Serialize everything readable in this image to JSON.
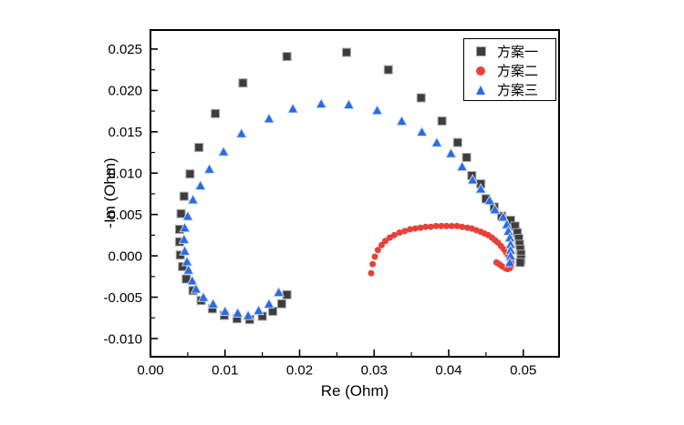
{
  "figure": {
    "background": "#ffffff",
    "axis_color": "#000000"
  },
  "legend": {
    "position": "top-right",
    "border": "#000000"
  },
  "chart_data": {
    "type": "scatter",
    "title": "",
    "grid": false,
    "x_axis": {
      "label": "Re (Ohm)",
      "range": [
        0,
        0.0548
      ],
      "major_ticks": [
        0,
        0.01,
        0.02,
        0.03,
        0.04,
        0.05
      ],
      "tick_labels": [
        "0.00",
        "0.01",
        "0.02",
        "0.03",
        "0.04",
        "0.05"
      ],
      "minor_ticks": [
        0.005,
        0.015,
        0.025,
        0.035,
        0.045
      ]
    },
    "y_axis": {
      "label": "-Im (Ohm)",
      "range": [
        -0.0122,
        0.0273
      ],
      "major_ticks": [
        -0.01,
        -0.005,
        0.0,
        0.005,
        0.01,
        0.015,
        0.02,
        0.025
      ],
      "tick_labels": [
        "-0.010",
        "-0.005",
        "0.000",
        "0.005",
        "0.010",
        "0.015",
        "0.020",
        "0.025"
      ],
      "minor_ticks": [
        -0.0075,
        -0.0025,
        0.0025,
        0.0075,
        0.0125,
        0.0175,
        0.0225
      ]
    },
    "series": [
      {
        "name": "方案一",
        "marker": "square",
        "color": "#3d3d3d",
        "edge": "#a8a8a8",
        "points": [
          [
            0.004,
            0.0001
          ],
          [
            0.0039,
            0.0017
          ],
          [
            0.0039,
            0.0032
          ],
          [
            0.0041,
            0.0051
          ],
          [
            0.0045,
            0.0072
          ],
          [
            0.0053,
            0.0099
          ],
          [
            0.0065,
            0.0131
          ],
          [
            0.0087,
            0.0172
          ],
          [
            0.0124,
            0.0209
          ],
          [
            0.0183,
            0.0241
          ],
          [
            0.0263,
            0.0246
          ],
          [
            0.0319,
            0.0225
          ],
          [
            0.0363,
            0.0191
          ],
          [
            0.0391,
            0.0163
          ],
          [
            0.0412,
            0.0137
          ],
          [
            0.0424,
            0.0119
          ],
          [
            0.0431,
            0.0097
          ],
          [
            0.0443,
            0.0087
          ],
          [
            0.045,
            0.0069
          ],
          [
            0.0461,
            0.0059
          ],
          [
            0.0471,
            0.0048
          ],
          [
            0.0483,
            0.0043
          ],
          [
            0.0489,
            0.0036
          ],
          [
            0.0492,
            0.0028
          ],
          [
            0.0494,
            0.0021
          ],
          [
            0.0495,
            0.0014
          ],
          [
            0.0496,
            0.0008
          ],
          [
            0.0497,
            0.0002
          ],
          [
            0.0497,
            -0.0004
          ],
          [
            0.0496,
            -0.0008
          ],
          [
            0.0043,
            -0.0013
          ],
          [
            0.0048,
            -0.0028
          ],
          [
            0.0057,
            -0.0042
          ],
          [
            0.0068,
            -0.0054
          ],
          [
            0.0083,
            -0.0064
          ],
          [
            0.0099,
            -0.0072
          ],
          [
            0.0116,
            -0.0076
          ],
          [
            0.0133,
            -0.0077
          ],
          [
            0.015,
            -0.0073
          ],
          [
            0.0164,
            -0.0067
          ],
          [
            0.0176,
            -0.0058
          ],
          [
            0.0183,
            -0.0047
          ]
        ]
      },
      {
        "name": "方案二",
        "marker": "circle",
        "color": "#e8413a",
        "edge": "none",
        "points": [
          [
            0.0296,
            -0.0021
          ],
          [
            0.0298,
            -0.001
          ],
          [
            0.0301,
            -0.0001
          ],
          [
            0.0305,
            0.0007
          ],
          [
            0.031,
            0.0013
          ],
          [
            0.0315,
            0.0018
          ],
          [
            0.0321,
            0.0022
          ],
          [
            0.0327,
            0.0025
          ],
          [
            0.0334,
            0.0028
          ],
          [
            0.0341,
            0.003
          ],
          [
            0.0348,
            0.0032
          ],
          [
            0.0355,
            0.0033
          ],
          [
            0.0362,
            0.0034
          ],
          [
            0.0369,
            0.0035
          ],
          [
            0.0376,
            0.0035
          ],
          [
            0.0383,
            0.0036
          ],
          [
            0.039,
            0.0036
          ],
          [
            0.0397,
            0.0036
          ],
          [
            0.0404,
            0.0036
          ],
          [
            0.0411,
            0.0036
          ],
          [
            0.0418,
            0.0035
          ],
          [
            0.0425,
            0.0034
          ],
          [
            0.0431,
            0.0033
          ],
          [
            0.0437,
            0.0031
          ],
          [
            0.0443,
            0.0029
          ],
          [
            0.0448,
            0.0027
          ],
          [
            0.0453,
            0.0025
          ],
          [
            0.0458,
            0.0022
          ],
          [
            0.0462,
            0.0019
          ],
          [
            0.0466,
            0.0016
          ],
          [
            0.047,
            0.0012
          ],
          [
            0.0474,
            0.0008
          ],
          [
            0.0477,
            0.0004
          ],
          [
            0.048,
            0.0
          ],
          [
            0.0482,
            -0.0004
          ],
          [
            0.0484,
            -0.0008
          ],
          [
            0.0484,
            -0.0012
          ],
          [
            0.0482,
            -0.0015
          ],
          [
            0.0479,
            -0.0016
          ],
          [
            0.0476,
            -0.0015
          ],
          [
            0.0472,
            -0.0013
          ],
          [
            0.0469,
            -0.0011
          ],
          [
            0.0466,
            -0.0009
          ],
          [
            0.0464,
            -0.0008
          ]
        ]
      },
      {
        "name": "方案三",
        "marker": "triangle",
        "color": "#2a6be2",
        "edge": "#cfdcf7",
        "points": [
          [
            0.0046,
            0.0006
          ],
          [
            0.0045,
            0.002
          ],
          [
            0.0046,
            0.0034
          ],
          [
            0.005,
            0.0048
          ],
          [
            0.0057,
            0.0068
          ],
          [
            0.0067,
            0.0085
          ],
          [
            0.0079,
            0.0105
          ],
          [
            0.0098,
            0.0126
          ],
          [
            0.0122,
            0.0148
          ],
          [
            0.0159,
            0.0166
          ],
          [
            0.0191,
            0.0178
          ],
          [
            0.0229,
            0.0184
          ],
          [
            0.0266,
            0.0183
          ],
          [
            0.0304,
            0.0176
          ],
          [
            0.0337,
            0.0163
          ],
          [
            0.0364,
            0.015
          ],
          [
            0.0384,
            0.0137
          ],
          [
            0.0403,
            0.0124
          ],
          [
            0.0418,
            0.0108
          ],
          [
            0.0432,
            0.0092
          ],
          [
            0.0443,
            0.0081
          ],
          [
            0.0455,
            0.0067
          ],
          [
            0.0462,
            0.0056
          ],
          [
            0.0473,
            0.0047
          ],
          [
            0.0478,
            0.0038
          ],
          [
            0.048,
            0.003
          ],
          [
            0.0482,
            0.0022
          ],
          [
            0.0483,
            0.0014
          ],
          [
            0.0483,
            0.0007
          ],
          [
            0.0483,
            0.0
          ],
          [
            0.0482,
            -0.0008
          ],
          [
            0.0049,
            -0.0007
          ],
          [
            0.0051,
            -0.0017
          ],
          [
            0.0056,
            -0.003
          ],
          [
            0.0061,
            -0.004
          ],
          [
            0.0071,
            -0.005
          ],
          [
            0.0084,
            -0.0058
          ],
          [
            0.01,
            -0.0067
          ],
          [
            0.0117,
            -0.0069
          ],
          [
            0.0131,
            -0.0072
          ],
          [
            0.0145,
            -0.0066
          ],
          [
            0.0159,
            -0.0058
          ],
          [
            0.0172,
            -0.0044
          ]
        ]
      }
    ]
  }
}
